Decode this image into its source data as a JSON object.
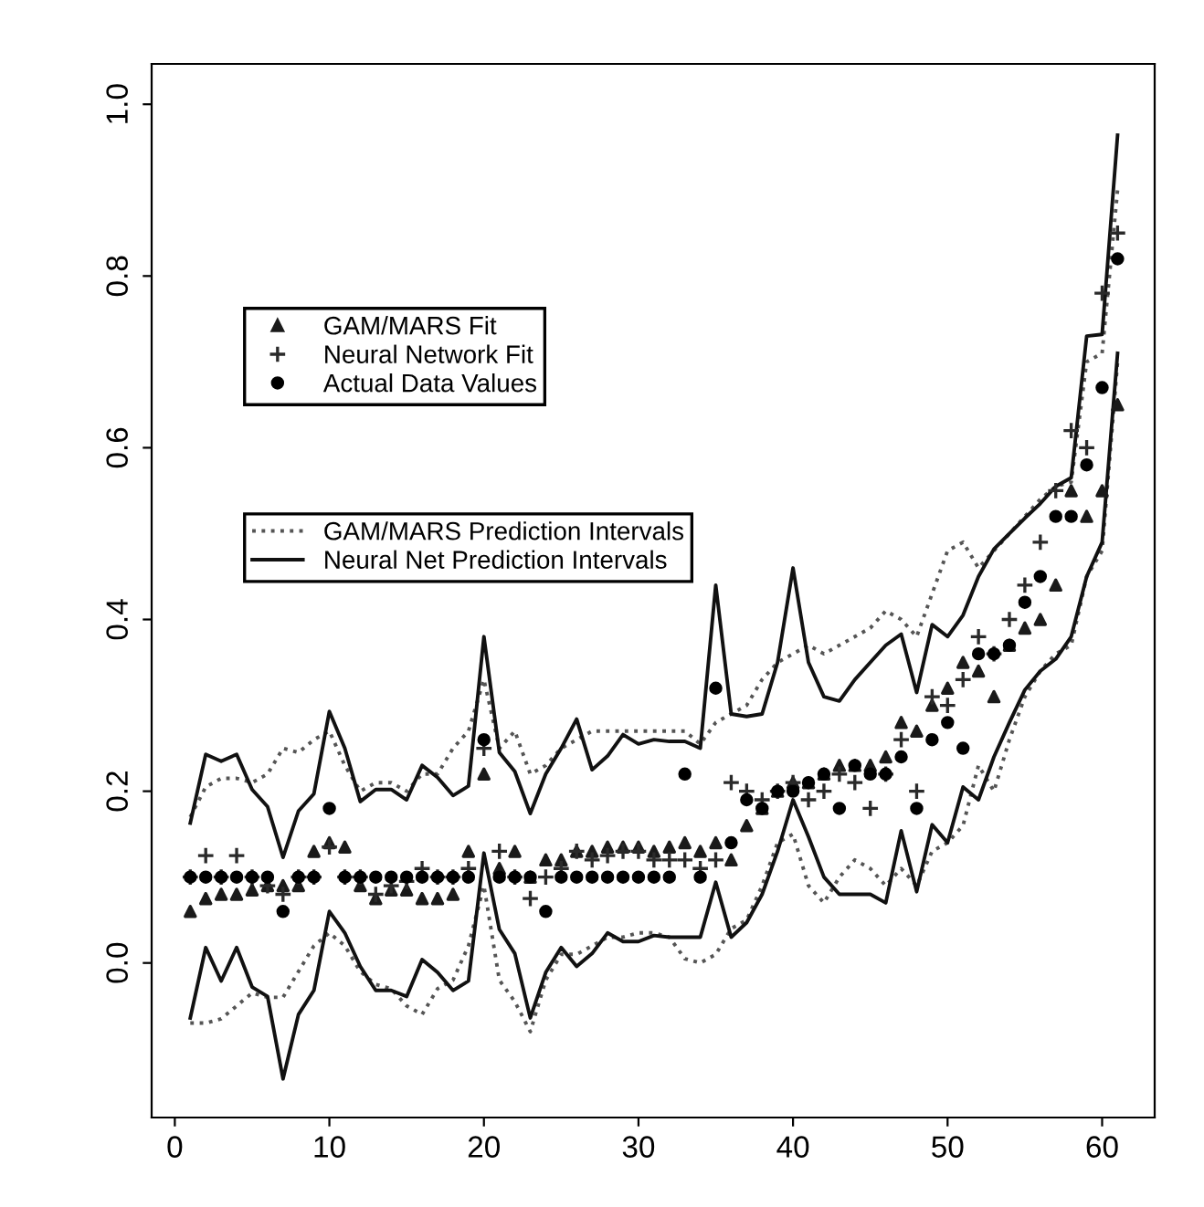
{
  "chart_data": {
    "type": "scatter",
    "x": [
      1,
      2,
      3,
      4,
      5,
      6,
      7,
      8,
      9,
      10,
      11,
      12,
      13,
      14,
      15,
      16,
      17,
      18,
      19,
      20,
      21,
      22,
      23,
      24,
      25,
      26,
      27,
      28,
      29,
      30,
      31,
      32,
      33,
      34,
      35,
      36,
      37,
      38,
      39,
      40,
      41,
      42,
      43,
      44,
      45,
      46,
      47,
      48,
      49,
      50,
      51,
      52,
      53,
      54,
      55,
      56,
      57,
      58,
      59,
      60,
      61
    ],
    "series": [
      {
        "name": "GAM/MARS Fit",
        "marker": "triangle",
        "color": "#1a1a1a",
        "values": [
          0.06,
          0.075,
          0.08,
          0.08,
          0.085,
          0.09,
          0.09,
          0.09,
          0.13,
          0.14,
          0.135,
          0.09,
          0.075,
          0.085,
          0.085,
          0.075,
          0.075,
          0.08,
          0.13,
          0.22,
          0.11,
          0.13,
          0.1,
          0.12,
          0.12,
          0.13,
          0.13,
          0.135,
          0.135,
          0.135,
          0.13,
          0.135,
          0.14,
          0.13,
          0.14,
          0.12,
          0.16,
          0.18,
          0.2,
          0.21,
          0.21,
          0.22,
          0.23,
          0.23,
          0.23,
          0.24,
          0.28,
          0.27,
          0.3,
          0.32,
          0.35,
          0.34,
          0.31,
          0.37,
          0.39,
          0.4,
          0.44,
          0.55,
          0.52,
          0.55,
          0.65
        ]
      },
      {
        "name": "Neural Network Fit",
        "marker": "cross",
        "color": "#2a2a2a",
        "values": [
          0.1,
          0.125,
          0.1,
          0.125,
          0.1,
          0.09,
          0.08,
          0.1,
          0.1,
          0.135,
          0.1,
          0.1,
          0.08,
          0.09,
          0.095,
          0.11,
          0.1,
          0.1,
          0.11,
          0.25,
          0.13,
          0.1,
          0.075,
          0.1,
          0.11,
          0.13,
          0.12,
          0.125,
          0.13,
          0.13,
          0.12,
          0.12,
          0.12,
          0.11,
          0.12,
          0.21,
          0.2,
          0.19,
          0.2,
          0.21,
          0.19,
          0.2,
          0.22,
          0.21,
          0.18,
          0.22,
          0.26,
          0.2,
          0.31,
          0.3,
          0.33,
          0.38,
          0.36,
          0.4,
          0.44,
          0.49,
          0.55,
          0.62,
          0.6,
          0.78,
          0.85
        ]
      },
      {
        "name": "Actual Data Values",
        "marker": "circle",
        "color": "#000000",
        "values": [
          0.1,
          0.1,
          0.1,
          0.1,
          0.1,
          0.1,
          0.06,
          0.1,
          0.1,
          0.18,
          0.1,
          0.1,
          0.1,
          0.1,
          0.1,
          0.1,
          0.1,
          0.1,
          0.1,
          0.26,
          0.1,
          0.1,
          0.1,
          0.06,
          0.1,
          0.1,
          0.1,
          0.1,
          0.1,
          0.1,
          0.1,
          0.1,
          0.22,
          0.1,
          0.32,
          0.14,
          0.19,
          0.18,
          0.2,
          0.2,
          0.21,
          0.22,
          0.18,
          0.23,
          0.22,
          0.22,
          0.24,
          0.18,
          0.26,
          0.28,
          0.25,
          0.36,
          0.36,
          0.37,
          0.42,
          0.45,
          0.52,
          0.52,
          0.58,
          0.67,
          0.82
        ]
      },
      {
        "name": "GAM/MARS Prediction Intervals",
        "type": "line",
        "line_style": "dotted",
        "color": "#555555",
        "values": [
          0.17,
          0.205,
          0.215,
          0.215,
          0.21,
          0.22,
          0.25,
          0.245,
          0.26,
          0.27,
          0.23,
          0.2,
          0.21,
          0.21,
          0.2,
          0.22,
          0.22,
          0.25,
          0.27,
          0.33,
          0.25,
          0.27,
          0.22,
          0.23,
          0.25,
          0.26,
          0.27,
          0.27,
          0.27,
          0.27,
          0.27,
          0.27,
          0.27,
          0.255,
          0.28,
          0.29,
          0.3,
          0.33,
          0.35,
          0.36,
          0.37,
          0.36,
          0.37,
          0.38,
          0.39,
          0.41,
          0.4,
          0.38,
          0.43,
          0.48,
          0.49,
          0.46,
          0.48,
          0.5,
          0.52,
          0.54,
          0.555,
          0.56,
          0.7,
          0.71,
          0.9
        ]
      },
      {
        "type": "line",
        "line_style": "dotted",
        "color": "#555555",
        "values": [
          -0.07,
          -0.07,
          -0.065,
          -0.05,
          -0.035,
          -0.04,
          -0.04,
          -0.01,
          0.02,
          0.035,
          0.02,
          -0.01,
          -0.025,
          -0.03,
          -0.05,
          -0.06,
          -0.03,
          -0.02,
          0.02,
          0.09,
          -0.02,
          -0.045,
          -0.08,
          -0.02,
          0.01,
          0.01,
          0.02,
          0.03,
          0.03,
          0.035,
          0.035,
          0.03,
          0.005,
          0.0,
          0.01,
          0.04,
          0.05,
          0.09,
          0.14,
          0.15,
          0.09,
          0.07,
          0.1,
          0.12,
          0.11,
          0.09,
          0.11,
          0.09,
          0.13,
          0.14,
          0.16,
          0.23,
          0.2,
          0.26,
          0.31,
          0.34,
          0.36,
          0.37,
          0.45,
          0.48,
          0.7
        ]
      },
      {
        "name": "Neural Net Prediction Intervals",
        "type": "line",
        "line_style": "solid",
        "color": "#111111",
        "values": [
          0.163,
          0.243,
          0.235,
          0.243,
          0.202,
          0.182,
          0.123,
          0.177,
          0.197,
          0.293,
          0.25,
          0.188,
          0.202,
          0.202,
          0.19,
          0.23,
          0.216,
          0.195,
          0.206,
          0.38,
          0.245,
          0.223,
          0.174,
          0.22,
          0.25,
          0.284,
          0.225,
          0.241,
          0.266,
          0.255,
          0.26,
          0.258,
          0.258,
          0.25,
          0.44,
          0.29,
          0.287,
          0.29,
          0.35,
          0.46,
          0.35,
          0.31,
          0.305,
          0.33,
          0.35,
          0.37,
          0.383,
          0.315,
          0.394,
          0.38,
          0.405,
          0.45,
          0.482,
          0.5,
          0.518,
          0.535,
          0.555,
          0.565,
          0.73,
          0.732,
          0.964
        ]
      },
      {
        "type": "line",
        "line_style": "solid",
        "color": "#111111",
        "values": [
          -0.064,
          0.018,
          -0.021,
          0.018,
          -0.028,
          -0.039,
          -0.135,
          -0.06,
          -0.032,
          0.06,
          0.035,
          -0.004,
          -0.032,
          -0.032,
          -0.039,
          0.004,
          -0.011,
          -0.032,
          -0.021,
          0.128,
          0.039,
          0.011,
          -0.064,
          -0.011,
          0.018,
          -0.004,
          0.011,
          0.035,
          0.025,
          0.025,
          0.032,
          0.03,
          0.03,
          0.03,
          0.094,
          0.03,
          0.047,
          0.08,
          0.13,
          0.19,
          0.147,
          0.1,
          0.08,
          0.08,
          0.08,
          0.07,
          0.154,
          0.083,
          0.161,
          0.14,
          0.205,
          0.19,
          0.24,
          0.28,
          0.318,
          0.34,
          0.354,
          0.38,
          0.45,
          0.49,
          0.71
        ]
      }
    ],
    "xlim": [
      -1.5,
      63.4
    ],
    "ylim": [
      -0.18,
      1.047
    ],
    "xticks": [
      0,
      10,
      20,
      30,
      40,
      50,
      60
    ],
    "yticks": [
      {
        "value": 0,
        "label": "0.0"
      },
      {
        "value": 0.2,
        "label": "0.2"
      },
      {
        "value": 0.4,
        "label": "0.4"
      },
      {
        "value": 0.6,
        "label": "0.6"
      },
      {
        "value": 0.8,
        "label": "0.8"
      },
      {
        "value": 1.0,
        "label": "1.0"
      }
    ],
    "legend": "top left",
    "grid": false
  }
}
